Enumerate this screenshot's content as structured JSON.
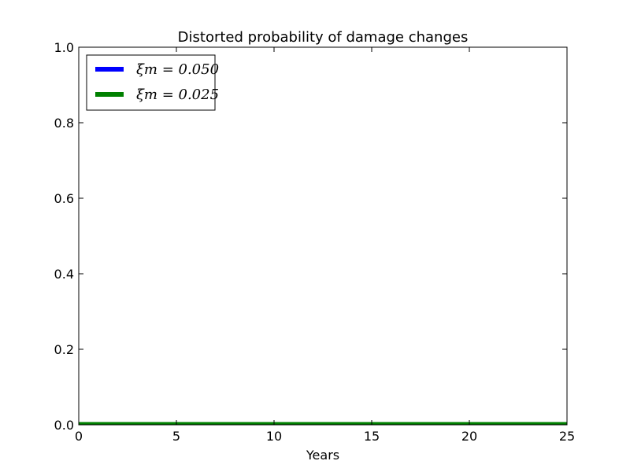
{
  "chart_data": {
    "type": "line",
    "title": "Distorted probability of damage changes",
    "xlabel": "Years",
    "ylabel": "",
    "xlim": [
      0,
      25
    ],
    "ylim": [
      0,
      1
    ],
    "xticks": [
      0,
      5,
      10,
      15,
      20,
      25
    ],
    "yticks": [
      0.0,
      0.2,
      0.4,
      0.6,
      0.8,
      1.0
    ],
    "xtick_labels": [
      "0",
      "5",
      "10",
      "15",
      "20",
      "25"
    ],
    "ytick_labels": [
      "0.0",
      "0.2",
      "0.4",
      "0.6",
      "0.8",
      "1.0"
    ],
    "grid": false,
    "legend_position": "upper-left",
    "series": [
      {
        "name": "ξm = 0.050",
        "color": "#0000ff",
        "x": [
          0,
          5,
          10,
          15,
          20,
          25
        ],
        "y": [
          0.003,
          0.003,
          0.003,
          0.003,
          0.003,
          0.003
        ]
      },
      {
        "name": "ξm = 0.025",
        "color": "#008000",
        "x": [
          0,
          5,
          10,
          15,
          20,
          25
        ],
        "y": [
          0.003,
          0.003,
          0.003,
          0.003,
          0.003,
          0.003
        ]
      }
    ]
  }
}
